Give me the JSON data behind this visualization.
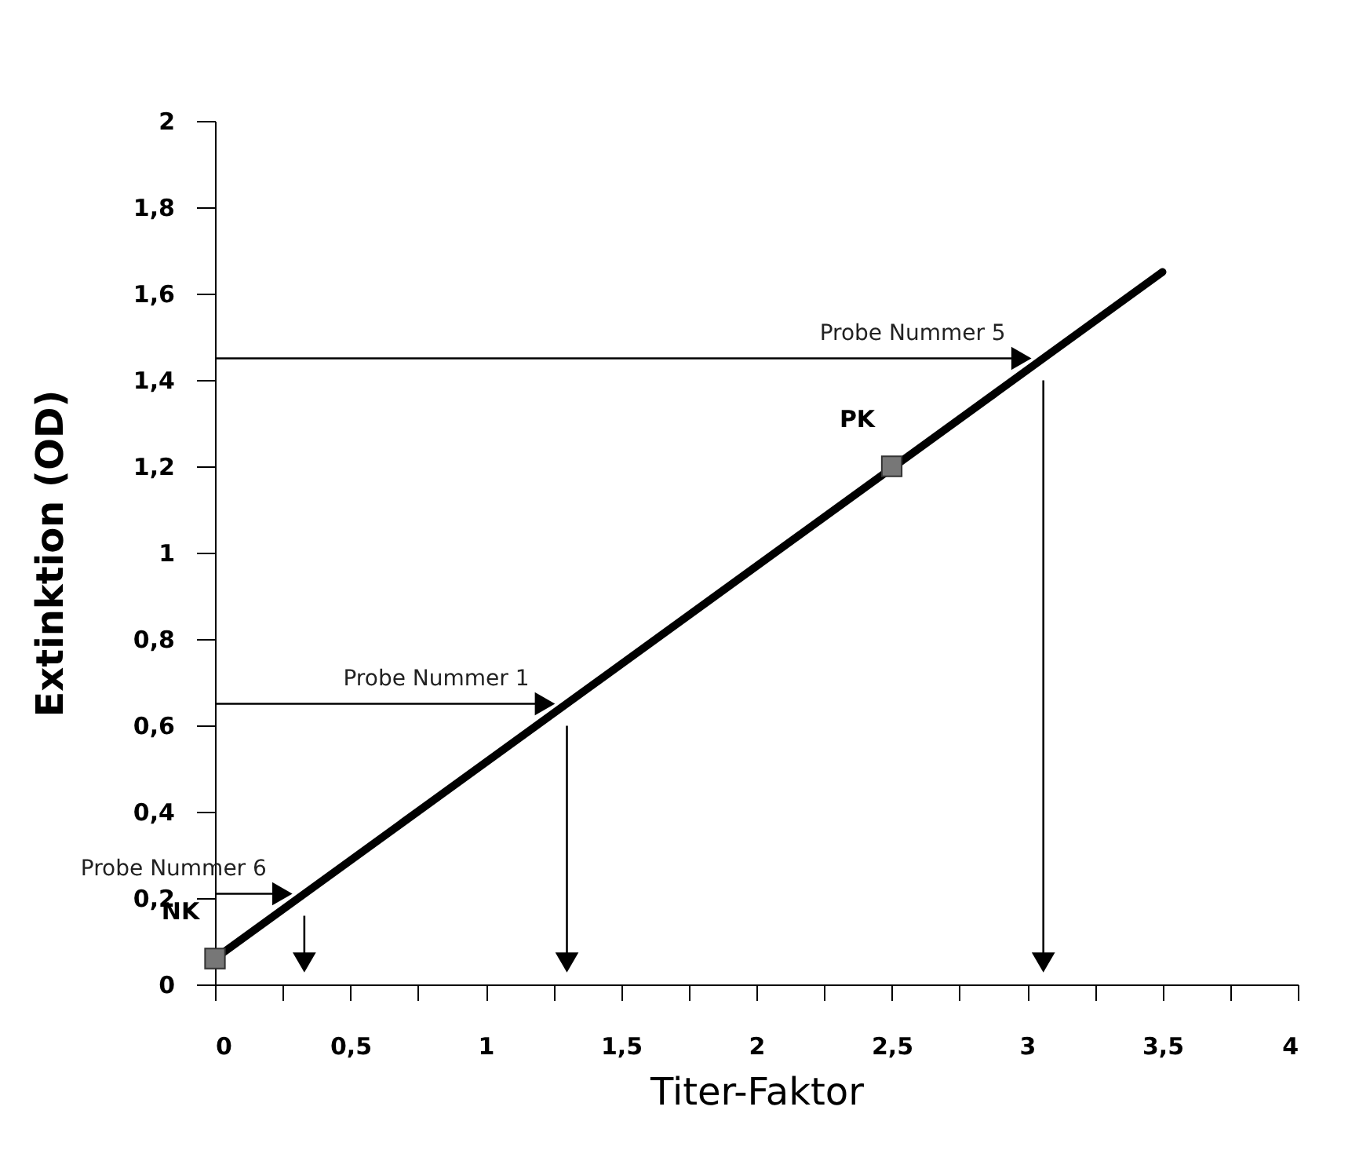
{
  "chart_data": {
    "type": "line",
    "xlabel": "Titer-Faktor",
    "ylabel": "Extinktion (OD)",
    "xlim": [
      0,
      4
    ],
    "ylim": [
      0,
      2
    ],
    "xticks": [
      0,
      {
        "value": 0.25,
        "label": null
      },
      {
        "value": 0.5,
        "label": "0,5"
      },
      {
        "value": 0.75,
        "label": null
      },
      1,
      {
        "value": 1.25,
        "label": null
      },
      {
        "value": 1.5,
        "label": "1,5"
      },
      {
        "value": 1.75,
        "label": null
      },
      2,
      {
        "value": 2.25,
        "label": null
      },
      {
        "value": 2.5,
        "label": "2,5"
      },
      {
        "value": 2.75,
        "label": null
      },
      3,
      {
        "value": 3.25,
        "label": null
      },
      {
        "value": 3.5,
        "label": "3,5"
      },
      {
        "value": 3.75,
        "label": null
      },
      4
    ],
    "yticks": [
      0,
      {
        "value": 0.2,
        "label": "0,2"
      },
      {
        "value": 0.4,
        "label": "0,4"
      },
      {
        "value": 0.6,
        "label": "0,6"
      },
      {
        "value": 0.8,
        "label": "0,8"
      },
      1,
      {
        "value": 1.2,
        "label": "1,2"
      },
      {
        "value": 1.4,
        "label": "1,4"
      },
      {
        "value": 1.6,
        "label": "1,6"
      },
      {
        "value": 1.8,
        "label": "1,8"
      },
      2
    ],
    "grid": false,
    "series": [
      {
        "type": "line",
        "color": "#000000",
        "x": [
          0,
          3.5
        ],
        "values": [
          0.06,
          1.65
        ],
        "marker": "none"
      },
      {
        "type": "scatter",
        "color": "#777777",
        "x": [
          0,
          2.5
        ],
        "values": [
          0.06,
          1.2
        ],
        "marker": "square"
      }
    ],
    "annotations": [
      {
        "text": "NK",
        "x": 0,
        "y": 0.06
      },
      {
        "text": "PK",
        "x": 2.5,
        "y": 1.2
      },
      {
        "text": "Probe Nummer 5",
        "x": 3.06,
        "y": 1.45
      },
      {
        "text": "Probe Nummer 1",
        "x": 1.3,
        "y": 0.65
      },
      {
        "text": "Probe Nummer 6",
        "x": 0.33,
        "y": 0.21
      }
    ]
  }
}
